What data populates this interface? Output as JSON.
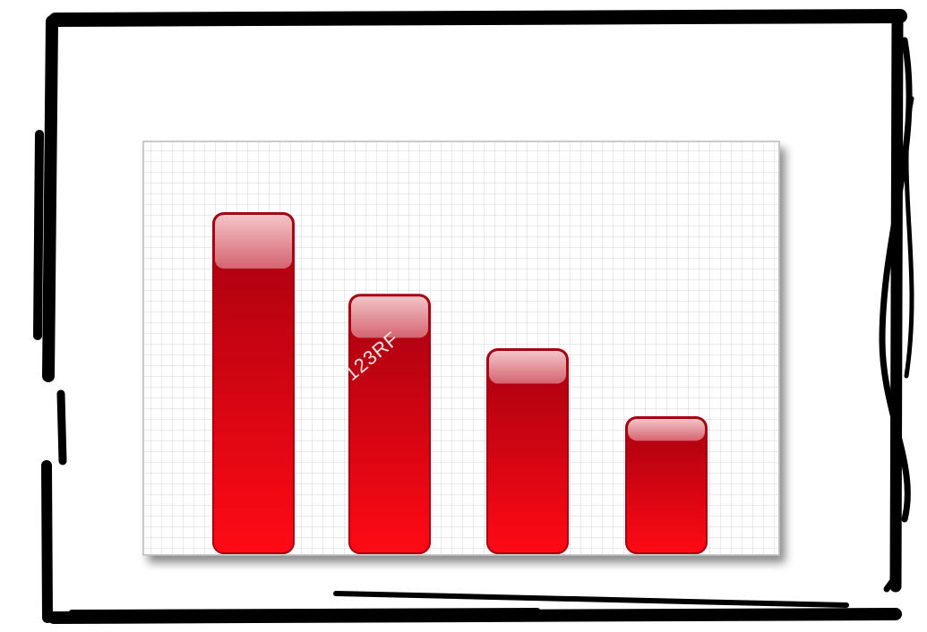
{
  "chart_data": {
    "type": "bar",
    "categories": [
      "",
      "",
      "",
      ""
    ],
    "values": [
      100,
      76,
      60,
      40
    ],
    "title": "",
    "xlabel": "",
    "ylabel": "",
    "ylim": [
      0,
      100
    ],
    "grid": true,
    "legend": "none"
  },
  "colors": {
    "bar": "#d8000c",
    "bar_dark": "#a50010",
    "bar_gloss": "#e79aa1",
    "grid": "#d4d4d4",
    "frame": "#000000"
  },
  "watermark": "123RF"
}
